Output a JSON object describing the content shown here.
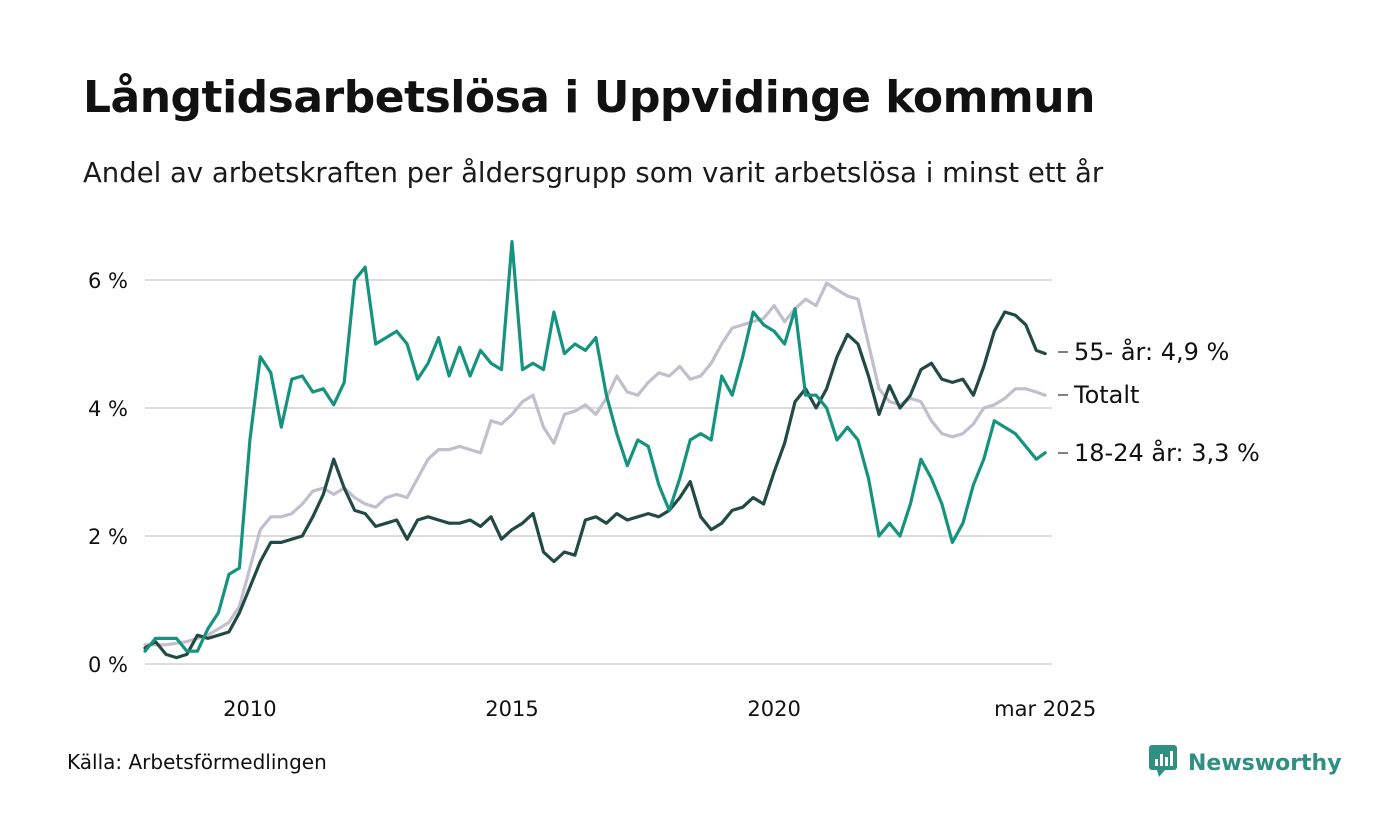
{
  "title": "Långtidsarbetslösa i Uppvidinge kommun",
  "subtitle": "Andel av arbetskraften per åldersgrupp som varit arbetslösa i minst ett år",
  "source": "Källa: Arbetsförmedlingen",
  "brand": {
    "name": "Newsworthy",
    "logo_icon": "bar-chart-speech-bubble-icon"
  },
  "colors": {
    "totalt": "#c1bfcc",
    "age55": "#224a44",
    "age1824": "#16937f",
    "grid": "#dddddd",
    "text": "#111111",
    "brand": "#2f8f83"
  },
  "chart_data": {
    "type": "line",
    "title": "Långtidsarbetslösa i Uppvidinge kommun",
    "subtitle": "Andel av arbetskraften per åldersgrupp som varit arbetslösa i minst ett år",
    "ylim": [
      0,
      6.7
    ],
    "xlim": [
      2008.0,
      2025.3
    ],
    "y_ticks": [
      {
        "value": 0,
        "label": "0 %"
      },
      {
        "value": 2,
        "label": "2 %"
      },
      {
        "value": 4,
        "label": "4 %"
      },
      {
        "value": 6,
        "label": "6 %"
      }
    ],
    "x_ticks": [
      {
        "value": 2010.0,
        "label": "2010"
      },
      {
        "value": 2015.0,
        "label": "2015"
      },
      {
        "value": 2020.0,
        "label": "2020"
      },
      {
        "value": 2025.17,
        "label": "mar 2025"
      }
    ],
    "grid": true,
    "legend": "end-labels",
    "series": [
      {
        "name": "Totalt",
        "label": "Totalt",
        "color": "#c1bfcc",
        "points": [
          [
            2008.0,
            0.3
          ],
          [
            2008.4,
            0.3
          ],
          [
            2008.8,
            0.35
          ],
          [
            2009.2,
            0.45
          ],
          [
            2009.6,
            0.65
          ],
          [
            2009.8,
            0.9
          ],
          [
            2010.0,
            1.5
          ],
          [
            2010.2,
            2.1
          ],
          [
            2010.4,
            2.3
          ],
          [
            2010.6,
            2.3
          ],
          [
            2010.8,
            2.35
          ],
          [
            2011.0,
            2.5
          ],
          [
            2011.2,
            2.7
          ],
          [
            2011.4,
            2.75
          ],
          [
            2011.6,
            2.65
          ],
          [
            2011.8,
            2.75
          ],
          [
            2012.0,
            2.6
          ],
          [
            2012.2,
            2.5
          ],
          [
            2012.4,
            2.45
          ],
          [
            2012.6,
            2.6
          ],
          [
            2012.8,
            2.65
          ],
          [
            2013.0,
            2.6
          ],
          [
            2013.2,
            2.9
          ],
          [
            2013.4,
            3.2
          ],
          [
            2013.6,
            3.35
          ],
          [
            2013.8,
            3.35
          ],
          [
            2014.0,
            3.4
          ],
          [
            2014.2,
            3.35
          ],
          [
            2014.4,
            3.3
          ],
          [
            2014.6,
            3.8
          ],
          [
            2014.8,
            3.75
          ],
          [
            2015.0,
            3.9
          ],
          [
            2015.2,
            4.1
          ],
          [
            2015.4,
            4.2
          ],
          [
            2015.6,
            3.7
          ],
          [
            2015.8,
            3.45
          ],
          [
            2016.0,
            3.9
          ],
          [
            2016.2,
            3.95
          ],
          [
            2016.4,
            4.05
          ],
          [
            2016.6,
            3.9
          ],
          [
            2016.8,
            4.15
          ],
          [
            2017.0,
            4.5
          ],
          [
            2017.2,
            4.25
          ],
          [
            2017.4,
            4.2
          ],
          [
            2017.6,
            4.4
          ],
          [
            2017.8,
            4.55
          ],
          [
            2018.0,
            4.5
          ],
          [
            2018.2,
            4.65
          ],
          [
            2018.4,
            4.45
          ],
          [
            2018.6,
            4.5
          ],
          [
            2018.8,
            4.7
          ],
          [
            2019.0,
            5.0
          ],
          [
            2019.2,
            5.25
          ],
          [
            2019.4,
            5.3
          ],
          [
            2019.6,
            5.35
          ],
          [
            2019.8,
            5.4
          ],
          [
            2020.0,
            5.6
          ],
          [
            2020.2,
            5.35
          ],
          [
            2020.4,
            5.55
          ],
          [
            2020.6,
            5.7
          ],
          [
            2020.8,
            5.6
          ],
          [
            2021.0,
            5.95
          ],
          [
            2021.2,
            5.85
          ],
          [
            2021.4,
            5.75
          ],
          [
            2021.6,
            5.7
          ],
          [
            2021.8,
            5.0
          ],
          [
            2022.0,
            4.3
          ],
          [
            2022.2,
            4.1
          ],
          [
            2022.4,
            4.05
          ],
          [
            2022.6,
            4.15
          ],
          [
            2022.8,
            4.1
          ],
          [
            2023.0,
            3.8
          ],
          [
            2023.2,
            3.6
          ],
          [
            2023.4,
            3.55
          ],
          [
            2023.6,
            3.6
          ],
          [
            2023.8,
            3.75
          ],
          [
            2024.0,
            4.0
          ],
          [
            2024.2,
            4.05
          ],
          [
            2024.4,
            4.15
          ],
          [
            2024.6,
            4.3
          ],
          [
            2024.8,
            4.3
          ],
          [
            2025.0,
            4.25
          ],
          [
            2025.17,
            4.2
          ]
        ]
      },
      {
        "name": "55- år",
        "label": "55- år: 4,9 %",
        "color": "#224a44",
        "points": [
          [
            2008.0,
            0.25
          ],
          [
            2008.2,
            0.35
          ],
          [
            2008.4,
            0.15
          ],
          [
            2008.6,
            0.1
          ],
          [
            2008.8,
            0.15
          ],
          [
            2009.0,
            0.45
          ],
          [
            2009.2,
            0.4
          ],
          [
            2009.4,
            0.45
          ],
          [
            2009.6,
            0.5
          ],
          [
            2009.8,
            0.8
          ],
          [
            2010.0,
            1.2
          ],
          [
            2010.2,
            1.6
          ],
          [
            2010.4,
            1.9
          ],
          [
            2010.6,
            1.9
          ],
          [
            2010.8,
            1.95
          ],
          [
            2011.0,
            2.0
          ],
          [
            2011.2,
            2.3
          ],
          [
            2011.4,
            2.65
          ],
          [
            2011.6,
            3.2
          ],
          [
            2011.8,
            2.75
          ],
          [
            2012.0,
            2.4
          ],
          [
            2012.2,
            2.35
          ],
          [
            2012.4,
            2.15
          ],
          [
            2012.6,
            2.2
          ],
          [
            2012.8,
            2.25
          ],
          [
            2013.0,
            1.95
          ],
          [
            2013.2,
            2.25
          ],
          [
            2013.4,
            2.3
          ],
          [
            2013.6,
            2.25
          ],
          [
            2013.8,
            2.2
          ],
          [
            2014.0,
            2.2
          ],
          [
            2014.2,
            2.25
          ],
          [
            2014.4,
            2.15
          ],
          [
            2014.6,
            2.3
          ],
          [
            2014.8,
            1.95
          ],
          [
            2015.0,
            2.1
          ],
          [
            2015.2,
            2.2
          ],
          [
            2015.4,
            2.35
          ],
          [
            2015.6,
            1.75
          ],
          [
            2015.8,
            1.6
          ],
          [
            2016.0,
            1.75
          ],
          [
            2016.2,
            1.7
          ],
          [
            2016.4,
            2.25
          ],
          [
            2016.6,
            2.3
          ],
          [
            2016.8,
            2.2
          ],
          [
            2017.0,
            2.35
          ],
          [
            2017.2,
            2.25
          ],
          [
            2017.4,
            2.3
          ],
          [
            2017.6,
            2.35
          ],
          [
            2017.8,
            2.3
          ],
          [
            2018.0,
            2.4
          ],
          [
            2018.2,
            2.6
          ],
          [
            2018.4,
            2.85
          ],
          [
            2018.6,
            2.3
          ],
          [
            2018.8,
            2.1
          ],
          [
            2019.0,
            2.2
          ],
          [
            2019.2,
            2.4
          ],
          [
            2019.4,
            2.45
          ],
          [
            2019.6,
            2.6
          ],
          [
            2019.8,
            2.5
          ],
          [
            2020.0,
            3.0
          ],
          [
            2020.2,
            3.45
          ],
          [
            2020.4,
            4.1
          ],
          [
            2020.6,
            4.3
          ],
          [
            2020.8,
            4.0
          ],
          [
            2021.0,
            4.3
          ],
          [
            2021.2,
            4.8
          ],
          [
            2021.4,
            5.15
          ],
          [
            2021.6,
            5.0
          ],
          [
            2021.8,
            4.5
          ],
          [
            2022.0,
            3.9
          ],
          [
            2022.2,
            4.35
          ],
          [
            2022.4,
            4.0
          ],
          [
            2022.6,
            4.2
          ],
          [
            2022.8,
            4.6
          ],
          [
            2023.0,
            4.7
          ],
          [
            2023.2,
            4.45
          ],
          [
            2023.4,
            4.4
          ],
          [
            2023.6,
            4.45
          ],
          [
            2023.8,
            4.2
          ],
          [
            2024.0,
            4.65
          ],
          [
            2024.2,
            5.2
          ],
          [
            2024.4,
            5.5
          ],
          [
            2024.6,
            5.45
          ],
          [
            2024.8,
            5.3
          ],
          [
            2025.0,
            4.9
          ],
          [
            2025.17,
            4.85
          ]
        ]
      },
      {
        "name": "18-24 år",
        "label": "18-24 år: 3,3 %",
        "color": "#16937f",
        "points": [
          [
            2008.0,
            0.2
          ],
          [
            2008.2,
            0.4
          ],
          [
            2008.4,
            0.4
          ],
          [
            2008.6,
            0.4
          ],
          [
            2008.8,
            0.2
          ],
          [
            2009.0,
            0.2
          ],
          [
            2009.2,
            0.55
          ],
          [
            2009.4,
            0.8
          ],
          [
            2009.6,
            1.4
          ],
          [
            2009.8,
            1.5
          ],
          [
            2010.0,
            3.5
          ],
          [
            2010.2,
            4.8
          ],
          [
            2010.4,
            4.55
          ],
          [
            2010.6,
            3.7
          ],
          [
            2010.8,
            4.45
          ],
          [
            2011.0,
            4.5
          ],
          [
            2011.2,
            4.25
          ],
          [
            2011.4,
            4.3
          ],
          [
            2011.6,
            4.05
          ],
          [
            2011.8,
            4.4
          ],
          [
            2012.0,
            6.0
          ],
          [
            2012.2,
            6.2
          ],
          [
            2012.4,
            5.0
          ],
          [
            2012.6,
            5.1
          ],
          [
            2012.8,
            5.2
          ],
          [
            2013.0,
            5.0
          ],
          [
            2013.2,
            4.45
          ],
          [
            2013.4,
            4.7
          ],
          [
            2013.6,
            5.1
          ],
          [
            2013.8,
            4.5
          ],
          [
            2014.0,
            4.95
          ],
          [
            2014.2,
            4.5
          ],
          [
            2014.4,
            4.9
          ],
          [
            2014.6,
            4.7
          ],
          [
            2014.8,
            4.6
          ],
          [
            2015.0,
            6.6
          ],
          [
            2015.2,
            4.6
          ],
          [
            2015.4,
            4.7
          ],
          [
            2015.6,
            4.6
          ],
          [
            2015.8,
            5.5
          ],
          [
            2016.0,
            4.85
          ],
          [
            2016.2,
            5.0
          ],
          [
            2016.4,
            4.9
          ],
          [
            2016.6,
            5.1
          ],
          [
            2016.8,
            4.2
          ],
          [
            2017.0,
            3.6
          ],
          [
            2017.2,
            3.1
          ],
          [
            2017.4,
            3.5
          ],
          [
            2017.6,
            3.4
          ],
          [
            2017.8,
            2.8
          ],
          [
            2018.0,
            2.4
          ],
          [
            2018.2,
            2.9
          ],
          [
            2018.4,
            3.5
          ],
          [
            2018.6,
            3.6
          ],
          [
            2018.8,
            3.5
          ],
          [
            2019.0,
            4.5
          ],
          [
            2019.2,
            4.2
          ],
          [
            2019.4,
            4.8
          ],
          [
            2019.6,
            5.5
          ],
          [
            2019.8,
            5.3
          ],
          [
            2020.0,
            5.2
          ],
          [
            2020.2,
            5.0
          ],
          [
            2020.4,
            5.55
          ],
          [
            2020.6,
            4.2
          ],
          [
            2020.8,
            4.2
          ],
          [
            2021.0,
            4.0
          ],
          [
            2021.2,
            3.5
          ],
          [
            2021.4,
            3.7
          ],
          [
            2021.6,
            3.5
          ],
          [
            2021.8,
            2.9
          ],
          [
            2022.0,
            2.0
          ],
          [
            2022.2,
            2.2
          ],
          [
            2022.4,
            2.0
          ],
          [
            2022.6,
            2.5
          ],
          [
            2022.8,
            3.2
          ],
          [
            2023.0,
            2.9
          ],
          [
            2023.2,
            2.5
          ],
          [
            2023.4,
            1.9
          ],
          [
            2023.6,
            2.2
          ],
          [
            2023.8,
            2.8
          ],
          [
            2024.0,
            3.2
          ],
          [
            2024.2,
            3.8
          ],
          [
            2024.4,
            3.7
          ],
          [
            2024.6,
            3.6
          ],
          [
            2024.8,
            3.4
          ],
          [
            2025.0,
            3.2
          ],
          [
            2025.17,
            3.3
          ]
        ]
      }
    ]
  }
}
